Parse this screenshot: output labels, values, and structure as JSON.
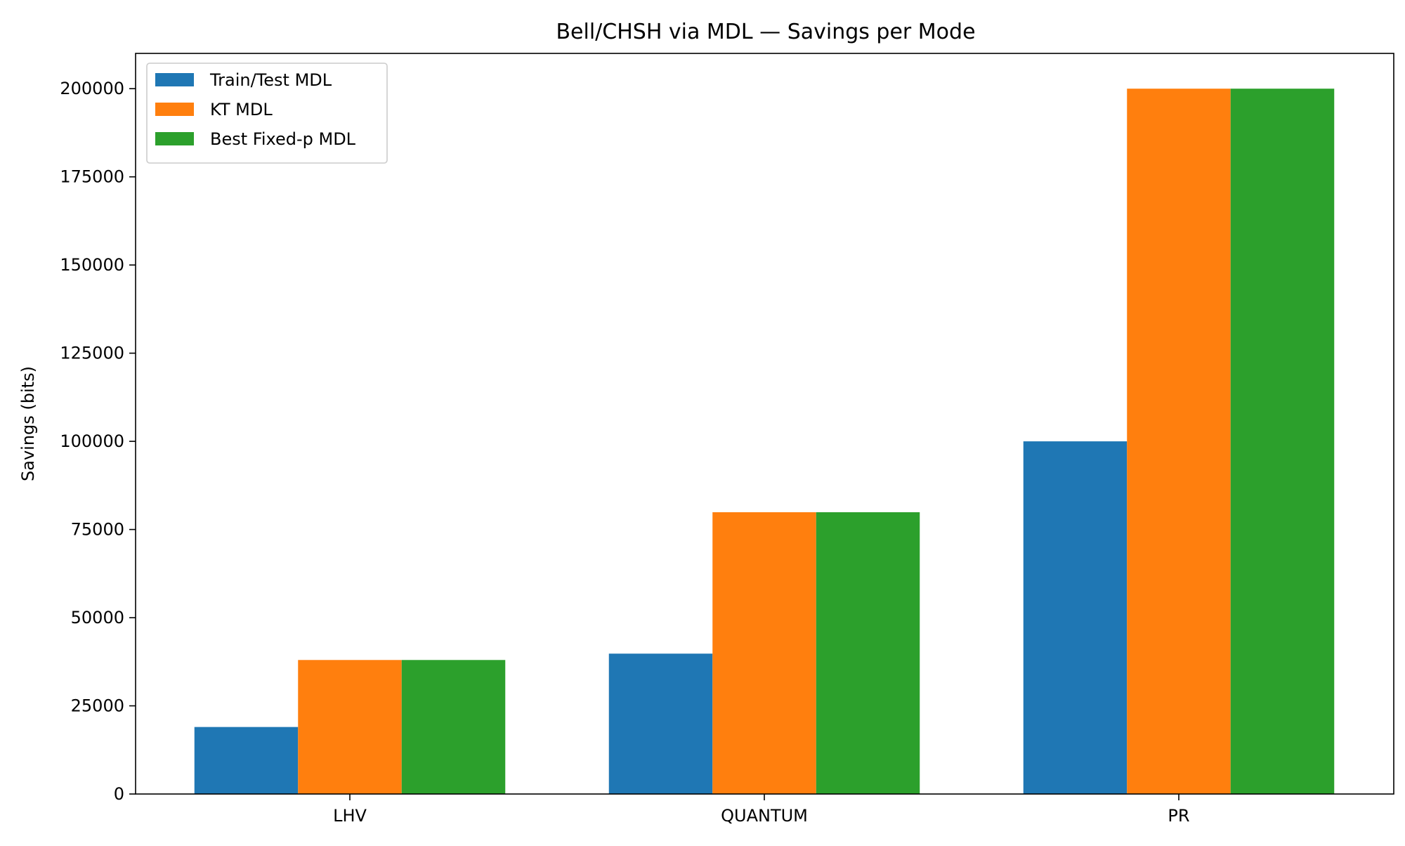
{
  "chart_data": {
    "type": "bar",
    "title": "Bell/CHSH via MDL — Savings per Mode",
    "xlabel": "",
    "ylabel": "Savings (bits)",
    "categories": [
      "LHV",
      "QUANTUM",
      "PR"
    ],
    "series": [
      {
        "name": "Train/Test MDL",
        "color": "#1f77b4",
        "values": [
          19000,
          39800,
          100000
        ]
      },
      {
        "name": "KT MDL",
        "color": "#ff7f0e",
        "values": [
          38000,
          79900,
          200000
        ]
      },
      {
        "name": "Best Fixed-p MDL",
        "color": "#2ca02c",
        "values": [
          38000,
          79900,
          200000
        ]
      }
    ],
    "ylim": [
      0,
      210000
    ],
    "yticks": [
      0,
      25000,
      50000,
      75000,
      100000,
      125000,
      150000,
      175000,
      200000
    ],
    "ytick_labels": [
      "0",
      "25000",
      "50000",
      "75000",
      "100000",
      "125000",
      "150000",
      "175000",
      "200000"
    ],
    "grid": false,
    "legend_position": "top-left"
  }
}
